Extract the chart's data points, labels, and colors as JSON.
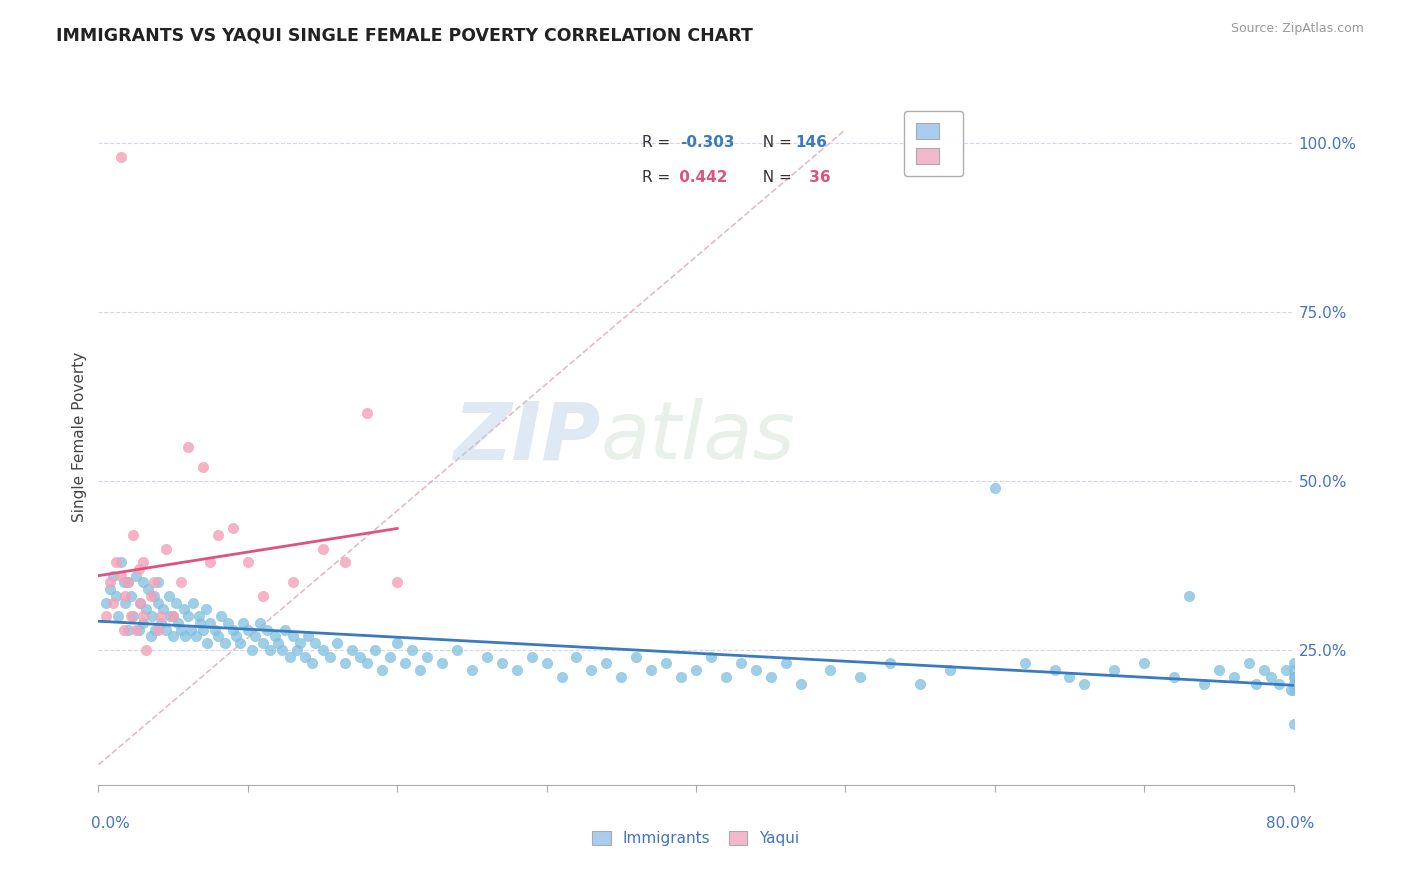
{
  "title": "IMMIGRANTS VS YAQUI SINGLE FEMALE POVERTY CORRELATION CHART",
  "source_text": "Source: ZipAtlas.com",
  "ylabel": "Single Female Poverty",
  "right_yticklabels": [
    "25.0%",
    "50.0%",
    "75.0%",
    "100.0%"
  ],
  "right_ytick_vals": [
    0.25,
    0.5,
    0.75,
    1.0
  ],
  "immigrants_color": "#7fbfdf",
  "yaqui_color": "#f4a0b8",
  "immigrants_line_color": "#3a7abf",
  "yaqui_line_color": "#e05080",
  "watermark_zip": "ZIP",
  "watermark_atlas": "atlas",
  "background_color": "#ffffff",
  "grid_color": "#d0d8e8",
  "xmin": 0.0,
  "xmax": 0.8,
  "ymin": 0.05,
  "ymax": 1.08,
  "legend_r1": "R = -0.303",
  "legend_n1": "N = 146",
  "legend_r2": "R =  0.442",
  "legend_n2": "N =  36",
  "legend_color1": "#3a7abf",
  "legend_color2": "#e05080",
  "legend_fill1": "#aaccee",
  "legend_fill2": "#f4b8cc",
  "imm_x": [
    0.005,
    0.008,
    0.01,
    0.012,
    0.013,
    0.015,
    0.017,
    0.018,
    0.02,
    0.02,
    0.022,
    0.023,
    0.025,
    0.027,
    0.028,
    0.03,
    0.03,
    0.032,
    0.033,
    0.035,
    0.036,
    0.037,
    0.038,
    0.04,
    0.04,
    0.042,
    0.043,
    0.045,
    0.047,
    0.048,
    0.05,
    0.05,
    0.052,
    0.053,
    0.055,
    0.057,
    0.058,
    0.06,
    0.062,
    0.063,
    0.065,
    0.067,
    0.068,
    0.07,
    0.072,
    0.073,
    0.075,
    0.078,
    0.08,
    0.082,
    0.085,
    0.087,
    0.09,
    0.092,
    0.095,
    0.097,
    0.1,
    0.103,
    0.105,
    0.108,
    0.11,
    0.113,
    0.115,
    0.118,
    0.12,
    0.123,
    0.125,
    0.128,
    0.13,
    0.133,
    0.135,
    0.138,
    0.14,
    0.143,
    0.145,
    0.15,
    0.155,
    0.16,
    0.165,
    0.17,
    0.175,
    0.18,
    0.185,
    0.19,
    0.195,
    0.2,
    0.205,
    0.21,
    0.215,
    0.22,
    0.23,
    0.24,
    0.25,
    0.26,
    0.27,
    0.28,
    0.29,
    0.3,
    0.31,
    0.32,
    0.33,
    0.34,
    0.35,
    0.36,
    0.37,
    0.38,
    0.39,
    0.4,
    0.41,
    0.42,
    0.43,
    0.44,
    0.45,
    0.46,
    0.47,
    0.49,
    0.51,
    0.53,
    0.55,
    0.57,
    0.6,
    0.62,
    0.64,
    0.65,
    0.66,
    0.68,
    0.7,
    0.72,
    0.73,
    0.74,
    0.75,
    0.76,
    0.77,
    0.775,
    0.78,
    0.785,
    0.79,
    0.795,
    0.798,
    0.8,
    0.8,
    0.8,
    0.8,
    0.8,
    0.8,
    0.8
  ],
  "imm_y": [
    0.32,
    0.34,
    0.36,
    0.33,
    0.3,
    0.38,
    0.35,
    0.32,
    0.35,
    0.28,
    0.33,
    0.3,
    0.36,
    0.28,
    0.32,
    0.35,
    0.29,
    0.31,
    0.34,
    0.27,
    0.3,
    0.33,
    0.28,
    0.32,
    0.35,
    0.29,
    0.31,
    0.28,
    0.33,
    0.3,
    0.3,
    0.27,
    0.32,
    0.29,
    0.28,
    0.31,
    0.27,
    0.3,
    0.28,
    0.32,
    0.27,
    0.3,
    0.29,
    0.28,
    0.31,
    0.26,
    0.29,
    0.28,
    0.27,
    0.3,
    0.26,
    0.29,
    0.28,
    0.27,
    0.26,
    0.29,
    0.28,
    0.25,
    0.27,
    0.29,
    0.26,
    0.28,
    0.25,
    0.27,
    0.26,
    0.25,
    0.28,
    0.24,
    0.27,
    0.25,
    0.26,
    0.24,
    0.27,
    0.23,
    0.26,
    0.25,
    0.24,
    0.26,
    0.23,
    0.25,
    0.24,
    0.23,
    0.25,
    0.22,
    0.24,
    0.26,
    0.23,
    0.25,
    0.22,
    0.24,
    0.23,
    0.25,
    0.22,
    0.24,
    0.23,
    0.22,
    0.24,
    0.23,
    0.21,
    0.24,
    0.22,
    0.23,
    0.21,
    0.24,
    0.22,
    0.23,
    0.21,
    0.22,
    0.24,
    0.21,
    0.23,
    0.22,
    0.21,
    0.23,
    0.2,
    0.22,
    0.21,
    0.23,
    0.2,
    0.22,
    0.49,
    0.23,
    0.22,
    0.21,
    0.2,
    0.22,
    0.23,
    0.21,
    0.33,
    0.2,
    0.22,
    0.21,
    0.23,
    0.2,
    0.22,
    0.21,
    0.2,
    0.22,
    0.19,
    0.21,
    0.23,
    0.2,
    0.22,
    0.19,
    0.14,
    0.21
  ],
  "yaq_x": [
    0.005,
    0.008,
    0.01,
    0.012,
    0.015,
    0.017,
    0.018,
    0.02,
    0.022,
    0.023,
    0.025,
    0.027,
    0.028,
    0.03,
    0.03,
    0.032,
    0.035,
    0.037,
    0.04,
    0.042,
    0.045,
    0.05,
    0.055,
    0.06,
    0.07,
    0.075,
    0.08,
    0.09,
    0.1,
    0.11,
    0.13,
    0.15,
    0.165,
    0.18,
    0.2,
    0.015
  ],
  "yaq_y": [
    0.3,
    0.35,
    0.32,
    0.38,
    0.36,
    0.28,
    0.33,
    0.35,
    0.3,
    0.42,
    0.28,
    0.37,
    0.32,
    0.3,
    0.38,
    0.25,
    0.33,
    0.35,
    0.28,
    0.3,
    0.4,
    0.3,
    0.35,
    0.55,
    0.52,
    0.38,
    0.42,
    0.43,
    0.38,
    0.33,
    0.35,
    0.4,
    0.38,
    0.6,
    0.35,
    0.98
  ]
}
